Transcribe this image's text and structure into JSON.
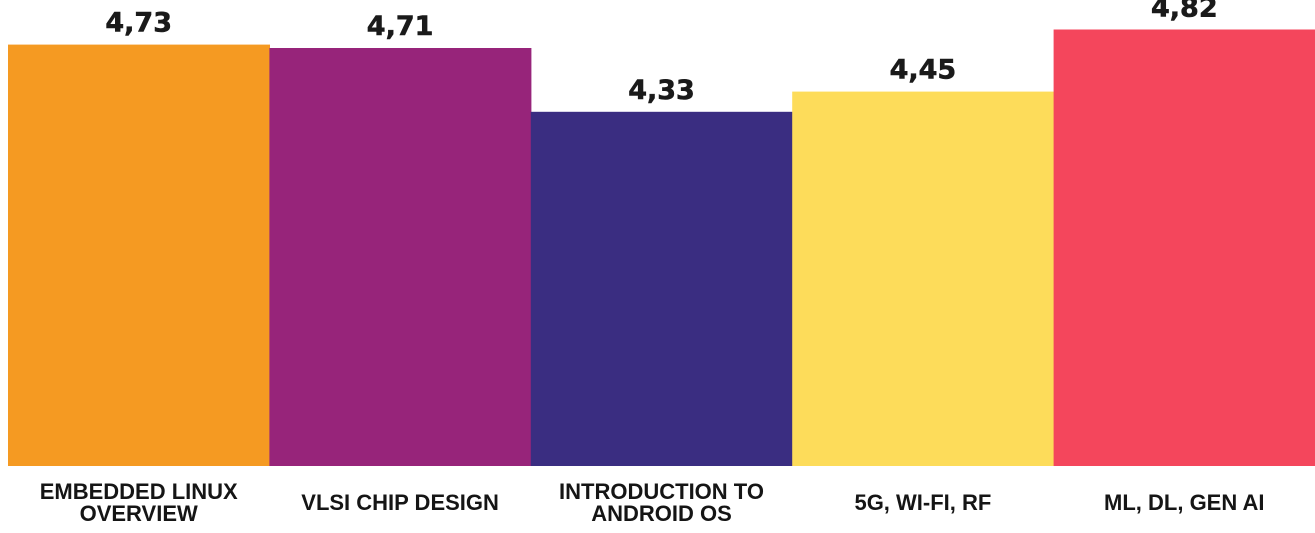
{
  "chart_data": {
    "type": "bar",
    "categories": [
      [
        "EMBEDDED LINUX",
        "OVERVIEW"
      ],
      [
        "VLSI CHIP DESIGN"
      ],
      [
        "INTRODUCTION TO",
        "ANDROID OS"
      ],
      [
        "5G, WI-FI, RF"
      ],
      [
        "ML, DL, GEN AI"
      ]
    ],
    "values": [
      4.73,
      4.71,
      4.33,
      4.45,
      4.82
    ],
    "value_labels": [
      "4,73",
      "4,71",
      "4,33",
      "4,45",
      "4,82"
    ],
    "colors": [
      "#f59a22",
      "#97247a",
      "#3a2d81",
      "#fddc5a",
      "#f4465c"
    ],
    "title": "",
    "xlabel": "",
    "ylabel": "",
    "ylim": [
      0,
      5
    ],
    "grid": false,
    "legend": "none"
  }
}
